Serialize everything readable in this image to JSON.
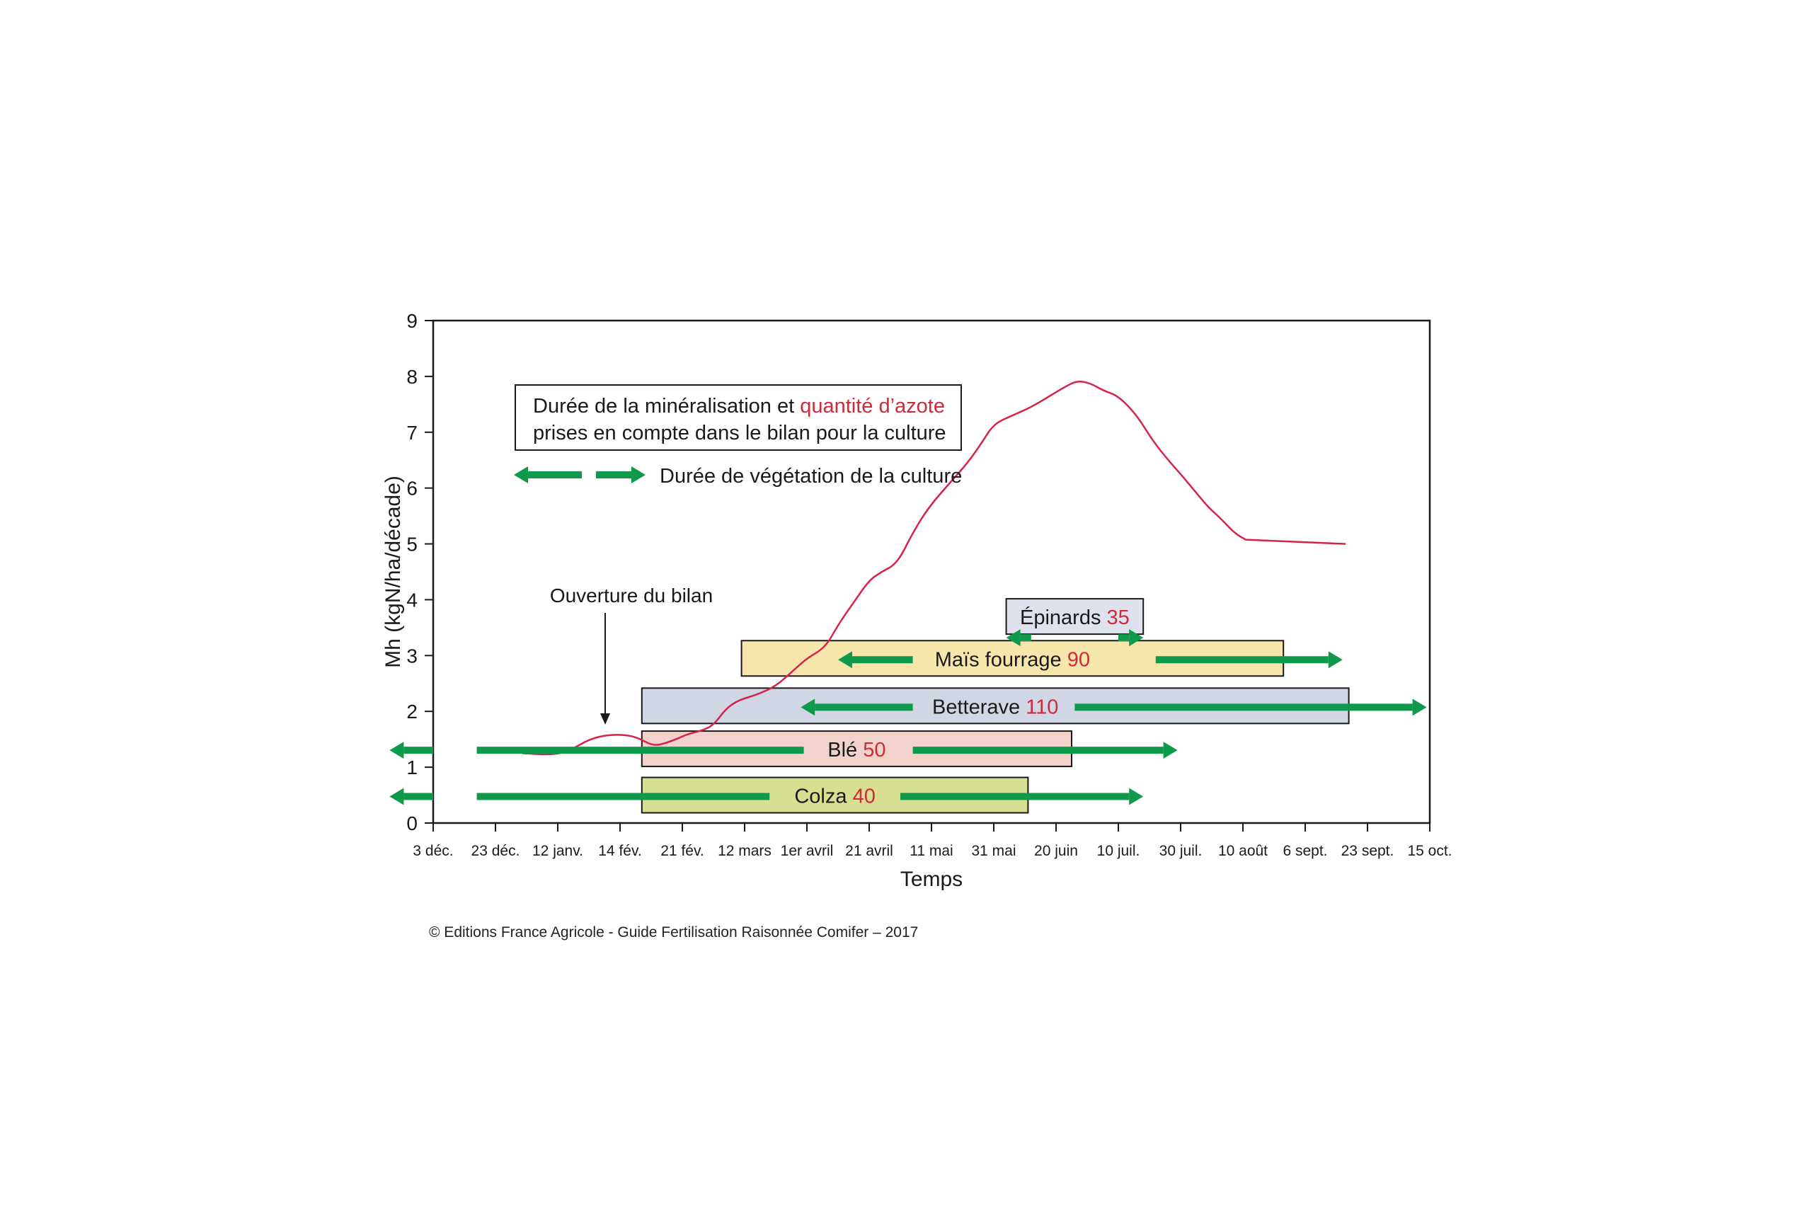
{
  "chart_data": {
    "type": "line",
    "xlabel": "Temps",
    "ylabel": "Mh (kgN/ha/décade)",
    "ylim": [
      0,
      9
    ],
    "yticks": [
      0,
      1,
      2,
      3,
      4,
      5,
      6,
      7,
      8,
      9
    ],
    "x_tick_labels": [
      "3 déc.",
      "23 déc.",
      "12 janv.",
      "14 fév.",
      "21 fév.",
      "12 mars",
      "1er avril",
      "21 avril",
      "11 mai",
      "31 mai",
      "20 juin",
      "10 juil.",
      "30 juil.",
      "10 août",
      "6 sept.",
      "23 sept.",
      "15 oct."
    ],
    "series": [
      {
        "color": "#d6234a",
        "x_index": [
          1.43,
          1.93,
          2.2,
          2.5,
          2.8,
          3.1,
          3.3,
          3.5,
          3.65,
          3.9,
          4.1,
          4.3,
          4.5,
          4.7,
          4.9,
          5.2,
          5.5,
          5.8,
          6.0,
          6.3,
          6.5,
          6.75,
          7.0,
          7.2,
          7.45,
          7.7,
          7.95,
          8.3,
          8.58,
          8.8,
          9.0,
          9.3,
          9.6,
          9.9,
          10.2,
          10.35,
          10.55,
          10.75,
          11.0,
          11.3,
          11.55,
          11.8,
          12.0,
          12.15,
          12.3,
          12.45,
          12.65,
          12.9,
          13.2,
          13.5,
          13.8,
          14.1,
          14.35,
          14.65
        ],
        "y": [
          1.25,
          1.22,
          1.3,
          1.5,
          1.58,
          1.58,
          1.52,
          1.4,
          1.4,
          1.5,
          1.6,
          1.65,
          1.75,
          2.05,
          2.2,
          2.3,
          2.45,
          2.75,
          2.95,
          3.15,
          3.55,
          3.95,
          4.35,
          4.5,
          4.65,
          5.2,
          5.65,
          6.1,
          6.45,
          6.8,
          7.15,
          7.3,
          7.45,
          7.65,
          7.85,
          7.92,
          7.88,
          7.75,
          7.65,
          7.3,
          6.85,
          6.5,
          6.25,
          6.05,
          5.85,
          5.65,
          5.45,
          5.15,
          5.0,
          5.0,
          5.0,
          5.0,
          5.0,
          5.0
        ]
      }
    ],
    "legend": {
      "box_line1_black": "Durée de la minéralisation et ",
      "box_line1_red": "quantité d’azote",
      "box_line2": "prises en compte dans le bilan pour la culture",
      "arrow_label": "Durée de végétation de la culture"
    },
    "annotation": "Ouverture du bilan",
    "crops": [
      {
        "name": "Épinards",
        "value": "35",
        "box": [
          9.2,
          11.4
        ],
        "y_center": 3.7,
        "fill": "#dfe2ee",
        "arrows": [
          [
            9.2,
            9.6,
            "left"
          ],
          [
            11.0,
            11.4,
            "right"
          ]
        ]
      },
      {
        "name": "Maïs fourrage",
        "value": "90",
        "box": [
          4.95,
          13.65
        ],
        "y_center": 2.95,
        "fill": "#f6e6ac",
        "arrows": [
          [
            6.5,
            7.7,
            "left"
          ],
          [
            11.6,
            14.6,
            "right"
          ]
        ]
      },
      {
        "name": "Betterave",
        "value": "110",
        "box": [
          3.35,
          14.7
        ],
        "y_center": 2.1,
        "fill": "#d0d6e4",
        "arrows": [
          [
            5.9,
            7.7,
            "left"
          ],
          [
            10.3,
            15.95,
            "right"
          ]
        ]
      },
      {
        "name": "Blé",
        "value": "50",
        "box": [
          3.35,
          10.25
        ],
        "y_center": 1.33,
        "fill": "#f2d3cb",
        "arrows": [
          [
            -0.7,
            0.0,
            "left"
          ],
          [
            0.7,
            5.95,
            null
          ],
          [
            7.7,
            11.95,
            "right"
          ]
        ]
      },
      {
        "name": "Colza",
        "value": "40",
        "box": [
          3.35,
          9.55
        ],
        "y_center": 0.5,
        "fill": "#d8df90",
        "arrows": [
          [
            -0.7,
            0.0,
            "left"
          ],
          [
            0.7,
            5.4,
            null
          ],
          [
            7.5,
            11.4,
            "right"
          ]
        ]
      }
    ]
  },
  "copyright": "© Editions France Agricole - Guide Fertilisation Raisonnée Comifer – 2017"
}
